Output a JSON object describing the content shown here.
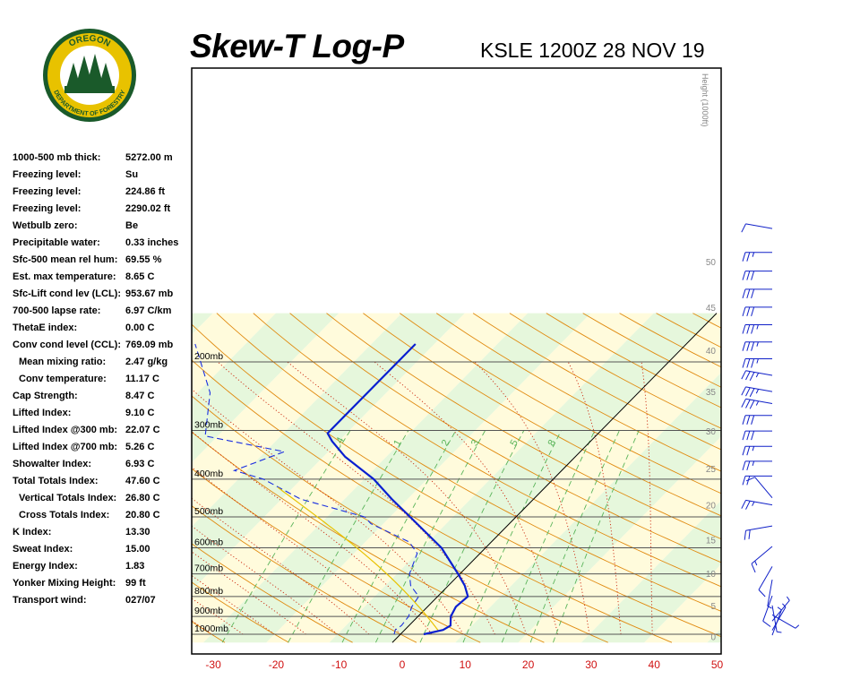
{
  "header": {
    "title": "Skew-T Log-P",
    "station_time": "KSLE 1200Z 28 NOV 19"
  },
  "logo": {
    "top_text": "OREGON",
    "bottom_text": "DEPARTMENT OF FORESTRY",
    "ring_color": "#1a5a2a",
    "gold_color": "#e8c200"
  },
  "indices": [
    {
      "label": "1000-500 mb thick:",
      "value": "5272.00 m",
      "indent": false
    },
    {
      "label": "Freezing level:",
      "value": "Su",
      "indent": false
    },
    {
      "label": "Freezing level:",
      "value": "224.86 ft",
      "indent": false
    },
    {
      "label": "Freezing level:",
      "value": "2290.02 ft",
      "indent": false
    },
    {
      "label": "Wetbulb zero:",
      "value": "Be",
      "indent": false
    },
    {
      "label": "Precipitable water:",
      "value": "0.33 inches",
      "indent": false
    },
    {
      "label": "Sfc-500 mean rel hum:",
      "value": "69.55 %",
      "indent": false
    },
    {
      "label": "Est. max temperature:",
      "value": "8.65 C",
      "indent": false
    },
    {
      "label": "Sfc-Lift cond lev (LCL):",
      "value": "953.67 mb",
      "indent": false
    },
    {
      "label": "700-500 lapse rate:",
      "value": "6.97 C/km",
      "indent": false
    },
    {
      "label": "ThetaE index:",
      "value": "0.00 C",
      "indent": false
    },
    {
      "label": "Conv cond level (CCL):",
      "value": "769.09 mb",
      "indent": false
    },
    {
      "label": "Mean mixing ratio:",
      "value": "2.47 g/kg",
      "indent": true
    },
    {
      "label": "Conv temperature:",
      "value": "11.17 C",
      "indent": true
    },
    {
      "label": "Cap Strength:",
      "value": "8.47 C",
      "indent": false
    },
    {
      "label": "Lifted Index:",
      "value": "9.10 C",
      "indent": false
    },
    {
      "label": "Lifted Index @300 mb:",
      "value": "22.07 C",
      "indent": false
    },
    {
      "label": "Lifted Index @700 mb:",
      "value": "5.26 C",
      "indent": false
    },
    {
      "label": "Showalter Index:",
      "value": "6.93 C",
      "indent": false
    },
    {
      "label": "Total Totals Index:",
      "value": "47.60 C",
      "indent": false
    },
    {
      "label": "Vertical Totals Index:",
      "value": "26.80 C",
      "indent": true
    },
    {
      "label": "Cross Totals Index:",
      "value": "20.80 C",
      "indent": true
    },
    {
      "label": "K Index:",
      "value": "13.30",
      "indent": false
    },
    {
      "label": "Sweat Index:",
      "value": "15.00",
      "indent": false
    },
    {
      "label": "Energy Index:",
      "value": "1.83",
      "indent": false
    },
    {
      "label": "Yonker Mixing Height:",
      "value": "99 ft",
      "indent": false
    },
    {
      "label": "Transport wind:",
      "value": "027/07",
      "indent": false
    }
  ],
  "chart_data": {
    "type": "line",
    "title": "Skew-T Log-P",
    "subtitle": "KSLE 1200Z 28 NOV 19",
    "xlabel": "",
    "ylabel": "",
    "x_ticks": [
      -30,
      -20,
      -10,
      0,
      10,
      20,
      30,
      40,
      50
    ],
    "pressure_ticks": [
      {
        "p": 200,
        "label": "200mb"
      },
      {
        "p": 300,
        "label": "300mb"
      },
      {
        "p": 400,
        "label": "400mb"
      },
      {
        "p": 500,
        "label": "500mb"
      },
      {
        "p": 600,
        "label": "600mb"
      },
      {
        "p": 700,
        "label": "700mb"
      },
      {
        "p": 800,
        "label": "800mb"
      },
      {
        "p": 900,
        "label": "900mb"
      },
      {
        "p": 1000,
        "label": "1000mb"
      }
    ],
    "height_axis_label": "Height (1000ft)",
    "height_ticks": [
      0,
      5,
      10,
      15,
      20,
      25,
      30,
      35,
      40,
      45,
      50
    ],
    "mixing_ratio_labels": [
      ".4",
      "1",
      "2",
      "3",
      "5",
      "8"
    ],
    "colors": {
      "temperature": "#0a1fd0",
      "dewpoint": "#1a2fe0",
      "parcel": "#000000",
      "dry_adiabat": "#e08a10",
      "moist_adiabat": "#cc2a10",
      "mixing_ratio": "#5ab45a",
      "isobar": "#555555",
      "band_warm": "#fffbdc",
      "band_cool": "#e6f7dc"
    },
    "series": [
      {
        "id": "temperature",
        "points": [
          {
            "p": 1000,
            "t": 3.7
          },
          {
            "p": 975,
            "t": 6.1
          },
          {
            "p": 950,
            "t": 6.6
          },
          {
            "p": 900,
            "t": 5.2
          },
          {
            "p": 850,
            "t": 4.5
          },
          {
            "p": 800,
            "t": 4.8
          },
          {
            "p": 750,
            "t": 2.6
          },
          {
            "p": 700,
            "t": -0.3
          },
          {
            "p": 600,
            "t": -7.0
          },
          {
            "p": 500,
            "t": -16.8
          },
          {
            "p": 450,
            "t": -22.5
          },
          {
            "p": 400,
            "t": -28.5
          },
          {
            "p": 350,
            "t": -36.6
          },
          {
            "p": 320,
            "t": -41.0
          },
          {
            "p": 305,
            "t": -43.0
          },
          {
            "p": 300,
            "t": -43.0
          },
          {
            "p": 180,
            "t": -43.0
          }
        ]
      },
      {
        "id": "dewpoint",
        "points": [
          {
            "p": 1000,
            "t": -1.0
          },
          {
            "p": 975,
            "t": -1.5
          },
          {
            "p": 950,
            "t": -1.2
          },
          {
            "p": 900,
            "t": -1.5
          },
          {
            "p": 850,
            "t": -2.5
          },
          {
            "p": 800,
            "t": -3.0
          },
          {
            "p": 750,
            "t": -6.0
          },
          {
            "p": 700,
            "t": -8.0
          },
          {
            "p": 620,
            "t": -10.0
          },
          {
            "p": 580,
            "t": -13.0
          },
          {
            "p": 520,
            "t": -22.0
          },
          {
            "p": 500,
            "t": -24.0
          },
          {
            "p": 450,
            "t": -37.0
          },
          {
            "p": 400,
            "t": -46.0
          },
          {
            "p": 380,
            "t": -52.0
          },
          {
            "p": 340,
            "t": -47.0
          },
          {
            "p": 310,
            "t": -62.0
          },
          {
            "p": 240,
            "t": -68.0
          },
          {
            "p": 180,
            "t": -78.0
          }
        ]
      }
    ],
    "winds": [
      {
        "h_kft": 0.2,
        "dir": 20,
        "spd": 5
      },
      {
        "h_kft": 1,
        "dir": 30,
        "spd": 5
      },
      {
        "h_kft": 2.5,
        "dir": 40,
        "spd": 5
      },
      {
        "h_kft": 3.5,
        "dir": 120,
        "spd": 5
      },
      {
        "h_kft": 5,
        "dir": 170,
        "spd": 5
      },
      {
        "h_kft": 6.5,
        "dir": 200,
        "spd": 10
      },
      {
        "h_kft": 9,
        "dir": 190,
        "spd": 5
      },
      {
        "h_kft": 11,
        "dir": 210,
        "spd": 10
      },
      {
        "h_kft": 14,
        "dir": 230,
        "spd": 15
      },
      {
        "h_kft": 17,
        "dir": 260,
        "spd": 20
      },
      {
        "h_kft": 20,
        "dir": 280,
        "spd": 25
      },
      {
        "h_kft": 21,
        "dir": 320,
        "spd": 10
      },
      {
        "h_kft": 24,
        "dir": 270,
        "spd": 20
      },
      {
        "h_kft": 26,
        "dir": 270,
        "spd": 25
      },
      {
        "h_kft": 28,
        "dir": 270,
        "spd": 25
      },
      {
        "h_kft": 30,
        "dir": 270,
        "spd": 30
      },
      {
        "h_kft": 32,
        "dir": 270,
        "spd": 30
      },
      {
        "h_kft": 33.5,
        "dir": 280,
        "spd": 35
      },
      {
        "h_kft": 35,
        "dir": 280,
        "spd": 35
      },
      {
        "h_kft": 37,
        "dir": 280,
        "spd": 35
      },
      {
        "h_kft": 39,
        "dir": 270,
        "spd": 35
      },
      {
        "h_kft": 41,
        "dir": 270,
        "spd": 35
      },
      {
        "h_kft": 43,
        "dir": 270,
        "spd": 35
      },
      {
        "h_kft": 45,
        "dir": 270,
        "spd": 30
      },
      {
        "h_kft": 47,
        "dir": 270,
        "spd": 30
      },
      {
        "h_kft": 49,
        "dir": 270,
        "spd": 30
      },
      {
        "h_kft": 51,
        "dir": 270,
        "spd": 25
      },
      {
        "h_kft": 53.5,
        "dir": 280,
        "spd": 10
      }
    ]
  }
}
